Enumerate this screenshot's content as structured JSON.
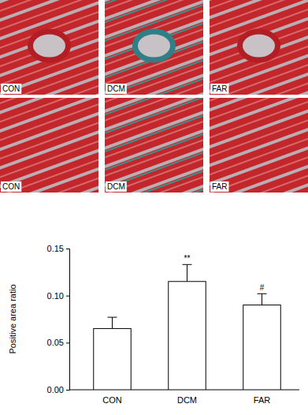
{
  "image_panels": [
    [
      "CON",
      "DCM",
      "FAR"
    ],
    [
      "CON",
      "DCM",
      "FAR"
    ]
  ],
  "chart_data": {
    "type": "bar",
    "categories": [
      "CON",
      "DCM",
      "FAR"
    ],
    "values": [
      0.065,
      0.115,
      0.09
    ],
    "errors": [
      0.012,
      0.018,
      0.012
    ],
    "color": "#ffffff",
    "y_label": "Positive area ratio",
    "ylim": [
      0,
      0.15
    ],
    "yticks": [
      {
        "value": 0,
        "label": "0.00"
      },
      {
        "value": 0.05,
        "label": "0.05"
      },
      {
        "value": 0.1,
        "label": "0.10"
      },
      {
        "value": 0.15,
        "label": "0.15"
      }
    ],
    "annotations": [
      {
        "category": 1,
        "text": "**"
      },
      {
        "category": 2,
        "text": "#"
      }
    ]
  }
}
